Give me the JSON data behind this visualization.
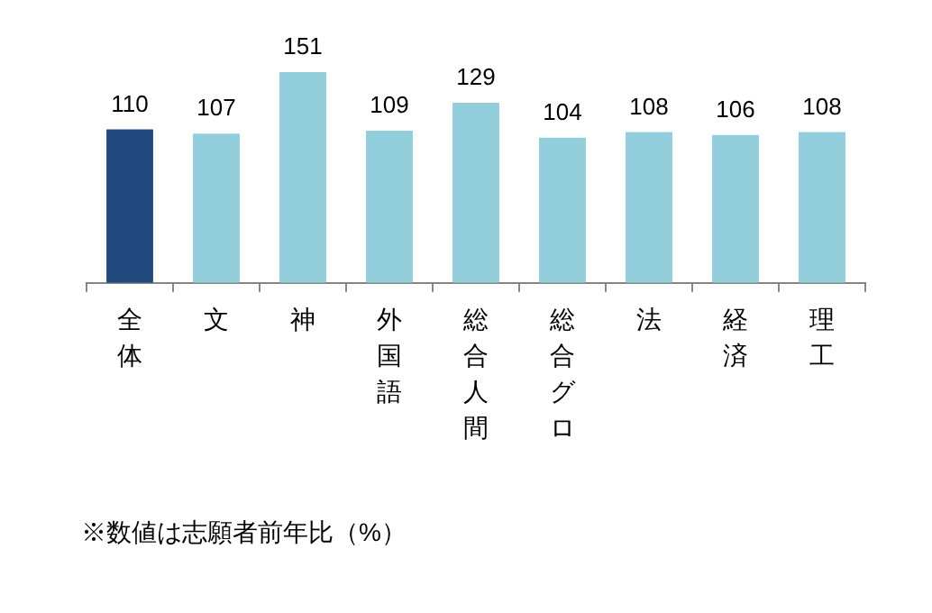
{
  "chart_data": {
    "type": "bar",
    "categories": [
      "全体",
      "文",
      "神",
      "外国語",
      "総合人間",
      "総合グロ",
      "法",
      "経済",
      "理工"
    ],
    "values": [
      110,
      107,
      151,
      109,
      129,
      104,
      108,
      106,
      108
    ],
    "colors": [
      "#1f497d",
      "#92cddc",
      "#92cddc",
      "#92cddc",
      "#92cddc",
      "#92cddc",
      "#92cddc",
      "#92cddc",
      "#92cddc"
    ],
    "tick_labels": "x",
    "data_labels": true,
    "annotations": [
      "※数値は志願者前年比（%）"
    ]
  }
}
